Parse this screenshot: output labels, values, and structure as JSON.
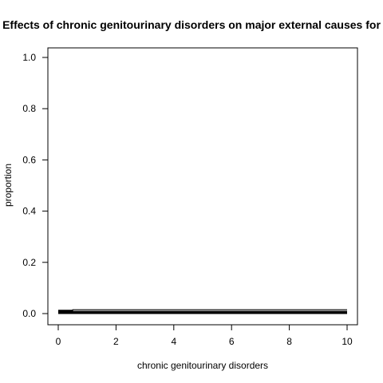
{
  "chart_data": {
    "type": "line",
    "title": "Effects of chronic genitourinary disorders on major external causes for",
    "xlabel": "chronic genitourinary disorders",
    "ylabel": "proportion",
    "xlim": [
      0,
      10
    ],
    "ylim": [
      0,
      1
    ],
    "x_ticks": [
      "0",
      "2",
      "4",
      "6",
      "8",
      "10"
    ],
    "y_ticks": [
      "0.0",
      "0.2",
      "0.4",
      "0.6",
      "0.8",
      "1.0"
    ],
    "grid": false,
    "legend": "none",
    "series": [
      {
        "x": [
          0,
          0.5,
          0.5,
          10
        ],
        "y": [
          0.012,
          0.012,
          0.015,
          0.015
        ],
        "color": "#000000",
        "line_weight": "thin"
      },
      {
        "x": [
          0,
          10
        ],
        "y": [
          0.003,
          0.003
        ],
        "color": "#000000",
        "line_weight": "thick"
      },
      {
        "x": [
          0,
          10
        ],
        "y": [
          0.006,
          0.006
        ],
        "color": "#000000",
        "line_weight": "thick"
      },
      {
        "x": [
          0,
          0.5
        ],
        "y": [
          0.01,
          0.01
        ],
        "color": "#000000",
        "line_weight": "thick"
      }
    ]
  }
}
